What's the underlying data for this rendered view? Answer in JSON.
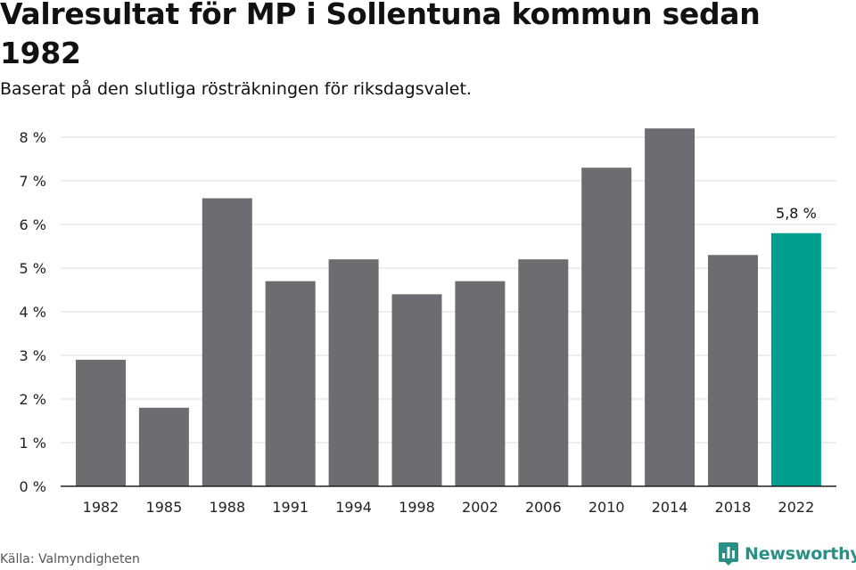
{
  "title": "Valresultat för MP i Sollentuna kommun sedan 1982",
  "subtitle": "Baserat på den slutliga rösträkningen för riksdagsvalet.",
  "source": "Källa: Valmyndigheten",
  "brand": {
    "name": "Newsworthy",
    "icon": "bar-chart-icon",
    "color": "#2a8f85"
  },
  "chart_data": {
    "type": "bar",
    "title": "Valresultat för MP i Sollentuna kommun sedan 1982",
    "subtitle": "Baserat på den slutliga rösträkningen för riksdagsvalet.",
    "categories": [
      "1982",
      "1985",
      "1988",
      "1991",
      "1994",
      "1998",
      "2002",
      "2006",
      "2010",
      "2014",
      "2018",
      "2022"
    ],
    "values": [
      2.9,
      1.8,
      6.6,
      4.7,
      5.2,
      4.4,
      4.7,
      5.2,
      7.3,
      8.2,
      5.3,
      5.8
    ],
    "unit": "%",
    "ylim": [
      0,
      8
    ],
    "yticks": [
      0,
      1,
      2,
      3,
      4,
      5,
      6,
      7,
      8
    ],
    "ytick_labels": [
      "0 %",
      "1 %",
      "2 %",
      "3 %",
      "4 %",
      "5 %",
      "6 %",
      "7 %",
      "8 %"
    ],
    "grid": true,
    "bar_color": "#6d6c71",
    "highlight_color": "#009e8f",
    "highlight_index": 11,
    "annotations": [
      {
        "category": "2022",
        "text": "5,8 %"
      }
    ]
  }
}
